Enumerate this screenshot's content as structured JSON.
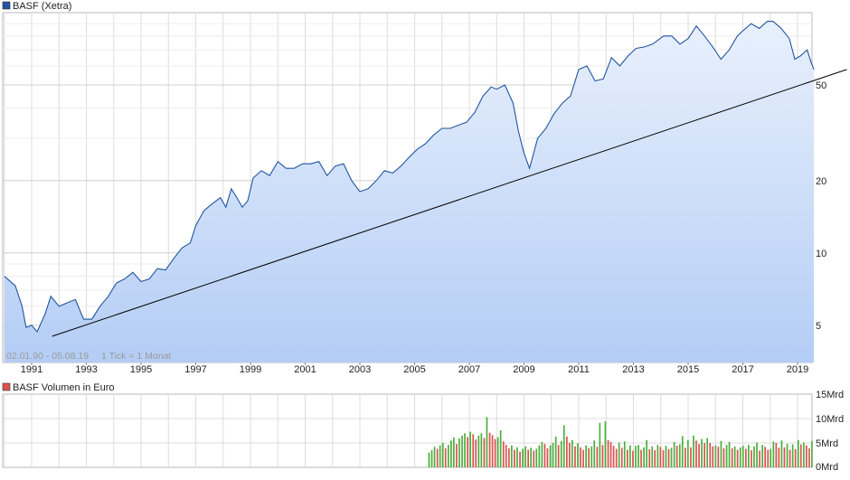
{
  "chart_data": [
    {
      "type": "area",
      "legend_label": "BASF (Xetra)",
      "period_label": "02.01.90 - 05.08.19",
      "tick_label": "1 Tick = 1 Monat",
      "y_scale": "log",
      "ylim": [
        3.5,
        100
      ],
      "y_ticks": [
        5,
        10,
        20,
        50
      ],
      "x_ticks": [
        "1991",
        "1993",
        "1995",
        "1997",
        "1999",
        "2001",
        "2003",
        "2005",
        "2007",
        "2009",
        "2011",
        "2013",
        "2015",
        "2017",
        "2019"
      ],
      "grid": true,
      "legend_position": "top-left",
      "colors": {
        "line": "#2255a0",
        "fill_top": "#e8f0fc",
        "fill_bottom": "#b4cdf5",
        "trend": "#000000",
        "legend_box": "#2255a0"
      },
      "series": [
        {
          "name": "BASF (Xetra)",
          "points": [
            [
              1990.0,
              8.0
            ],
            [
              1990.4,
              7.3
            ],
            [
              1990.65,
              6.0
            ],
            [
              1990.8,
              4.9
            ],
            [
              1991.0,
              5.0
            ],
            [
              1991.2,
              4.7
            ],
            [
              1991.5,
              5.6
            ],
            [
              1991.7,
              6.6
            ],
            [
              1992.0,
              6.0
            ],
            [
              1992.3,
              6.2
            ],
            [
              1992.6,
              6.4
            ],
            [
              1992.9,
              5.3
            ],
            [
              1993.2,
              5.3
            ],
            [
              1993.5,
              6.0
            ],
            [
              1993.8,
              6.6
            ],
            [
              1994.1,
              7.5
            ],
            [
              1994.4,
              7.8
            ],
            [
              1994.7,
              8.3
            ],
            [
              1995.0,
              7.6
            ],
            [
              1995.3,
              7.8
            ],
            [
              1995.6,
              8.6
            ],
            [
              1995.9,
              8.5
            ],
            [
              1996.2,
              9.5
            ],
            [
              1996.5,
              10.5
            ],
            [
              1996.8,
              11.0
            ],
            [
              1997.0,
              13.0
            ],
            [
              1997.3,
              15.0
            ],
            [
              1997.6,
              16.0
            ],
            [
              1997.9,
              17.0
            ],
            [
              1998.1,
              15.5
            ],
            [
              1998.3,
              18.5
            ],
            [
              1998.5,
              17.0
            ],
            [
              1998.7,
              15.5
            ],
            [
              1998.9,
              16.5
            ],
            [
              1999.1,
              20.5
            ],
            [
              1999.4,
              22.0
            ],
            [
              1999.7,
              21.0
            ],
            [
              2000.0,
              24.0
            ],
            [
              2000.3,
              22.5
            ],
            [
              2000.6,
              22.5
            ],
            [
              2000.9,
              23.5
            ],
            [
              2001.2,
              23.5
            ],
            [
              2001.5,
              24.0
            ],
            [
              2001.8,
              21.0
            ],
            [
              2002.1,
              23.0
            ],
            [
              2002.4,
              23.5
            ],
            [
              2002.7,
              20.0
            ],
            [
              2003.0,
              18.0
            ],
            [
              2003.3,
              18.5
            ],
            [
              2003.6,
              20.0
            ],
            [
              2003.9,
              22.0
            ],
            [
              2004.2,
              21.5
            ],
            [
              2004.5,
              23.0
            ],
            [
              2004.8,
              25.0
            ],
            [
              2005.1,
              27.0
            ],
            [
              2005.4,
              28.5
            ],
            [
              2005.7,
              31.0
            ],
            [
              2006.0,
              33.0
            ],
            [
              2006.3,
              33.0
            ],
            [
              2006.6,
              34.0
            ],
            [
              2006.9,
              35.0
            ],
            [
              2007.2,
              38.5
            ],
            [
              2007.5,
              45.0
            ],
            [
              2007.8,
              49.0
            ],
            [
              2008.0,
              48.0
            ],
            [
              2008.3,
              50.0
            ],
            [
              2008.6,
              42.0
            ],
            [
              2008.8,
              32.0
            ],
            [
              2009.0,
              26.0
            ],
            [
              2009.2,
              22.5
            ],
            [
              2009.5,
              30.0
            ],
            [
              2009.8,
              33.0
            ],
            [
              2010.1,
              38.0
            ],
            [
              2010.4,
              42.0
            ],
            [
              2010.7,
              45.0
            ],
            [
              2011.0,
              58.0
            ],
            [
              2011.3,
              60.0
            ],
            [
              2011.6,
              52.0
            ],
            [
              2011.9,
              53.0
            ],
            [
              2012.2,
              65.0
            ],
            [
              2012.5,
              60.0
            ],
            [
              2012.8,
              66.0
            ],
            [
              2013.1,
              71.0
            ],
            [
              2013.4,
              72.0
            ],
            [
              2013.7,
              74.0
            ],
            [
              2014.1,
              80.0
            ],
            [
              2014.4,
              80.0
            ],
            [
              2014.7,
              74.0
            ],
            [
              2015.0,
              78.0
            ],
            [
              2015.3,
              88.0
            ],
            [
              2015.6,
              80.0
            ],
            [
              2015.9,
              72.0
            ],
            [
              2016.2,
              64.0
            ],
            [
              2016.5,
              70.0
            ],
            [
              2016.8,
              80.0
            ],
            [
              2017.0,
              84.0
            ],
            [
              2017.3,
              90.0
            ],
            [
              2017.6,
              86.0
            ],
            [
              2017.9,
              92.0
            ],
            [
              2018.1,
              92.0
            ],
            [
              2018.4,
              86.0
            ],
            [
              2018.7,
              78.0
            ],
            [
              2018.9,
              64.0
            ],
            [
              2019.1,
              66.0
            ],
            [
              2019.35,
              70.0
            ],
            [
              2019.5,
              62.0
            ],
            [
              2019.6,
              58.0
            ]
          ]
        }
      ],
      "trendline": [
        [
          1991.75,
          4.5
        ],
        [
          2020.8,
          58.0
        ]
      ]
    },
    {
      "type": "bar",
      "legend_label": "BASF Volumen in Euro",
      "y_ticks": [
        "0Mrd",
        "5Mrd",
        "10Mrd",
        "15Mrd"
      ],
      "ylim": [
        0,
        15
      ],
      "grid": true,
      "legend_position": "top-left",
      "colors": {
        "up": "#4caf3c",
        "down": "#d9534f",
        "legend_box": "#d9534f"
      },
      "x_range": [
        2005.5,
        2019.6
      ],
      "volumes_mrd": [
        3.0,
        3.5,
        4.2,
        3.8,
        4.5,
        5.0,
        3.9,
        4.6,
        5.5,
        6.1,
        4.8,
        5.9,
        6.5,
        7.0,
        6.2,
        7.3,
        6.8,
        5.7,
        6.5,
        7.0,
        6.0,
        10.3,
        7.1,
        6.6,
        5.8,
        6.2,
        7.6,
        5.3,
        4.6,
        3.9,
        4.5,
        3.6,
        4.1,
        3.2,
        3.8,
        4.3,
        3.6,
        4.0,
        3.4,
        3.8,
        4.5,
        5.2,
        4.8,
        3.9,
        4.5,
        5.0,
        6.3,
        4.6,
        5.4,
        8.6,
        6.3,
        5.0,
        5.6,
        4.3,
        4.9,
        4.1,
        3.6,
        4.5,
        3.9,
        4.3,
        5.5,
        4.2,
        9.1,
        4.6,
        9.4,
        5.6,
        5.2,
        4.4,
        3.8,
        5.1,
        4.0,
        5.3,
        3.6,
        4.5,
        3.4,
        4.4,
        4.6,
        3.6,
        4.1,
        5.6,
        3.7,
        4.3,
        3.5,
        4.6,
        4.2,
        3.5,
        4.4,
        3.7,
        4.0,
        5.2,
        4.4,
        4.7,
        6.4,
        4.0,
        5.6,
        4.1,
        6.5,
        5.5,
        4.8,
        5.8,
        5.0,
        6.0,
        5.0,
        4.3,
        4.5,
        4.2,
        5.4,
        3.9,
        4.6,
        5.2,
        3.9,
        4.3,
        3.6,
        4.1,
        4.4,
        3.8,
        4.6,
        3.5,
        4.3,
        5.1,
        3.4,
        4.6,
        4.2,
        3.6,
        3.8,
        5.3,
        5.0,
        4.0,
        5.5,
        4.1,
        4.8,
        3.6,
        4.7,
        3.7,
        5.6,
        4.7,
        5.1,
        4.5,
        3.9,
        5.4
      ]
    }
  ]
}
